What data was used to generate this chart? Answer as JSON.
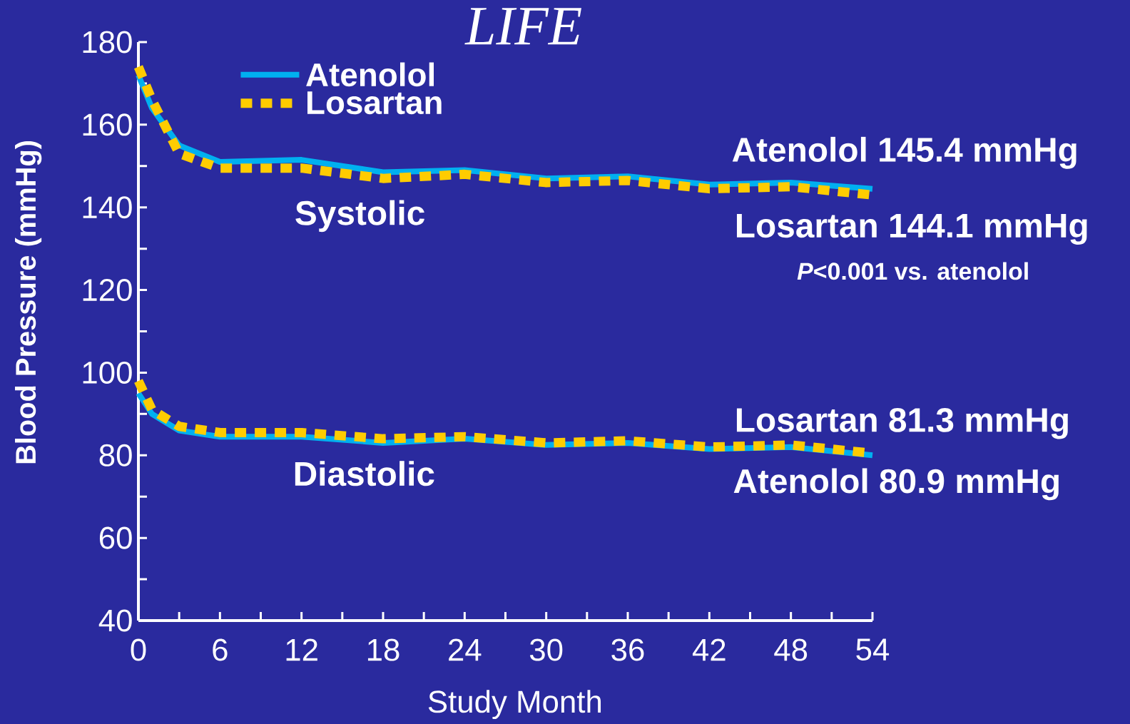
{
  "chart_data": {
    "type": "line",
    "title": "LIFE",
    "xlabel": "Study Month",
    "ylabel": "Blood Pressure (mmHg)",
    "xlim": [
      0,
      54
    ],
    "ylim": [
      40,
      180
    ],
    "xticks": [
      0,
      {
        "value": 3,
        "label": null
      },
      6,
      {
        "value": 9,
        "label": null
      },
      12,
      {
        "value": 15,
        "label": null
      },
      18,
      {
        "value": 21,
        "label": null
      },
      24,
      {
        "value": 27,
        "label": null
      },
      30,
      {
        "value": 33,
        "label": null
      },
      36,
      {
        "value": 39,
        "label": null
      },
      42,
      {
        "value": 45,
        "label": null
      },
      48,
      {
        "value": 51,
        "label": null
      },
      54
    ],
    "yticks": [
      40,
      {
        "value": 50,
        "label": null
      },
      60,
      {
        "value": 70,
        "label": null
      },
      80,
      {
        "value": 90,
        "label": null
      },
      100,
      {
        "value": 110,
        "label": null
      },
      120,
      {
        "value": 130,
        "label": null
      },
      140,
      {
        "value": 150,
        "label": null
      },
      160,
      {
        "value": 170,
        "label": null
      },
      180
    ],
    "x": [
      0,
      1,
      3,
      6,
      12,
      18,
      24,
      30,
      36,
      42,
      48,
      54
    ],
    "series": [
      {
        "name": "Atenolol",
        "color": "#00b0f0",
        "line_style": "solid",
        "values": [
          172,
          164,
          155,
          151,
          151.5,
          148.5,
          149,
          147,
          147.5,
          145.5,
          146,
          144.5
        ]
      },
      {
        "name": "Losartan",
        "color": "#ffcc00",
        "line_style": "dashed",
        "values": [
          174,
          166,
          153,
          149.5,
          149.5,
          147,
          148,
          146,
          146.5,
          144.5,
          145,
          143
        ]
      },
      {
        "color": "#00b0f0",
        "line_style": "solid",
        "values": [
          95,
          90,
          86,
          84.5,
          84.5,
          83,
          84,
          82.5,
          83,
          81.5,
          82,
          80
        ]
      },
      {
        "color": "#ffcc00",
        "line_style": "dashed",
        "values": [
          98,
          91,
          87,
          85.5,
          85.5,
          84,
          84.5,
          83,
          83.5,
          82,
          82.5,
          80.5
        ]
      }
    ],
    "legend": "top left",
    "annotations": [
      "Atenolol 145.4 mmHg",
      "Systolic",
      "Losartan 144.1 mmHg",
      "*P*<0.001 vs. atenolol",
      "Losartan 81.3 mmHg",
      "Diastolic",
      "Atenolol 80.9 mmHg"
    ]
  }
}
